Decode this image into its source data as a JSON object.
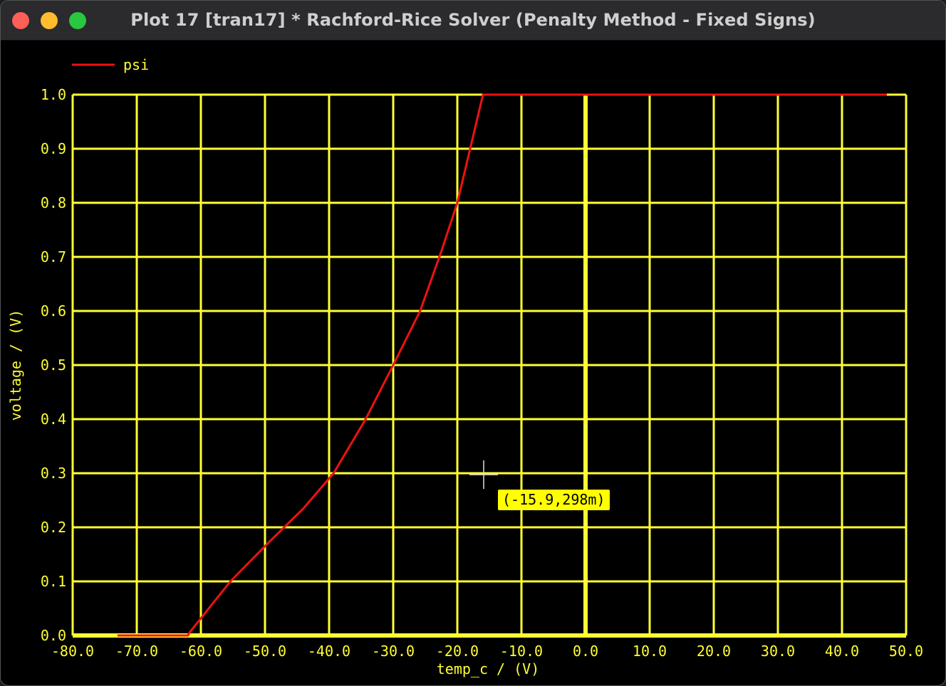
{
  "window": {
    "title": "Plot 17 [tran17] * Rachford-Rice Solver (Penalty Method - Fixed Signs)"
  },
  "colors": {
    "grid": "#ffff33",
    "series": "#ee1111",
    "background": "#000000",
    "text": "#ffff33"
  },
  "cursor": {
    "readout": "(-15.9,298m)",
    "x": -15.9,
    "y": 0.298
  },
  "chart_data": {
    "type": "line",
    "xlabel": "temp_c / (V)",
    "ylabel": "voltage / (V)",
    "xlim": [
      -80,
      50
    ],
    "ylim": [
      0,
      1
    ],
    "grid": true,
    "legend": "top-left",
    "x_ticks": [
      "-80.0",
      "-70.0",
      "-60.0",
      "-50.0",
      "-40.0",
      "-30.0",
      "-20.0",
      "-10.0",
      "0.0",
      "10.0",
      "20.0",
      "30.0",
      "40.0",
      "50.0"
    ],
    "y_ticks": [
      "0.0",
      "0.1",
      "0.2",
      "0.3",
      "0.4",
      "0.5",
      "0.6",
      "0.7",
      "0.8",
      "0.9",
      "1.0"
    ],
    "series": [
      {
        "name": "psi",
        "x": [
          -73,
          -62,
          -61.8,
          -55.4,
          -49.6,
          -44,
          -39.3,
          -34.3,
          -30,
          -25.8,
          -22.5,
          -20,
          -18,
          -16,
          47
        ],
        "y": [
          0,
          0,
          0.005,
          0.1,
          0.17,
          0.235,
          0.3,
          0.4,
          0.5,
          0.6,
          0.71,
          0.8,
          0.9,
          1.0,
          1.0
        ]
      }
    ]
  }
}
